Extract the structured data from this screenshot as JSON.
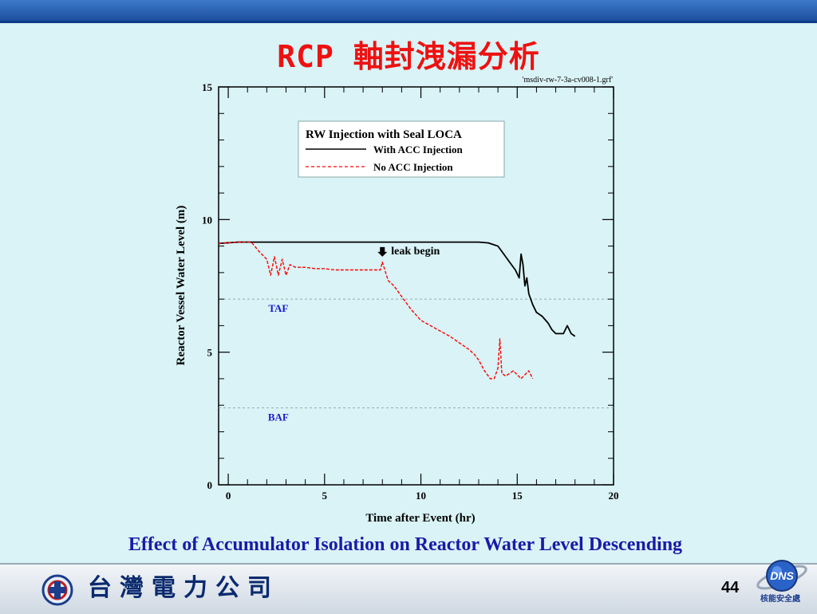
{
  "slide": {
    "title": "RCP 軸封洩漏分析",
    "caption": "Effect of Accumulator Isolation on Reactor Water Level Descending",
    "company_name": "台灣電力公司",
    "page_number": "44",
    "dns_logo_text": "DNS",
    "dns_motto": "核能安全處"
  },
  "colors": {
    "background": "#d9f3f6",
    "title": "#ee1111",
    "caption": "#1a1aa6",
    "series_with_acc": "#000000",
    "series_no_acc": "#ff0000",
    "reference_label": "#1a1acc"
  },
  "chart_data": {
    "type": "line",
    "file_label": "'msdiv-rw-7-3a-cv008-1.grf'",
    "xlabel": "Time after Event (hr)",
    "ylabel": "Reactor Vessel Water Level (m)",
    "xlim": [
      -0.5,
      20
    ],
    "ylim": [
      0,
      15
    ],
    "xticks": [
      0,
      5,
      10,
      15,
      20
    ],
    "yticks": [
      0,
      5,
      10,
      15
    ],
    "grid": false,
    "legend": {
      "title": "RW Injection with Seal LOCA",
      "placement": "top-center",
      "entries": [
        "With ACC Injection",
        "No ACC Injection"
      ]
    },
    "reference_lines": [
      {
        "label": "TAF",
        "y": 7.0
      },
      {
        "label": "BAF",
        "y": 2.9
      }
    ],
    "annotation": {
      "text": "leak begin",
      "x": 8.0,
      "y": 8.6
    },
    "series": [
      {
        "name": "With ACC Injection",
        "style": "solid",
        "color": "#000000",
        "x": [
          -0.5,
          0.5,
          1.2,
          2.0,
          5.0,
          8.0,
          10.0,
          12.0,
          13.0,
          13.5,
          14.0,
          14.3,
          14.6,
          14.9,
          15.1,
          15.2,
          15.3,
          15.4,
          15.5,
          15.6,
          15.8,
          16.0,
          16.3,
          16.6,
          16.8,
          17.0,
          17.2,
          17.4,
          17.6,
          17.8,
          18.0
        ],
        "y": [
          9.1,
          9.15,
          9.15,
          9.15,
          9.15,
          9.15,
          9.15,
          9.15,
          9.15,
          9.12,
          9.0,
          8.7,
          8.4,
          8.1,
          7.8,
          8.7,
          8.3,
          7.5,
          7.8,
          7.2,
          6.8,
          6.5,
          6.35,
          6.1,
          5.85,
          5.7,
          5.7,
          5.7,
          6.0,
          5.7,
          5.6
        ]
      },
      {
        "name": "No ACC Injection",
        "style": "dashed",
        "color": "#ff0000",
        "x": [
          -0.5,
          0.5,
          1.2,
          1.6,
          2.0,
          2.2,
          2.4,
          2.6,
          2.8,
          3.0,
          3.2,
          3.5,
          4.0,
          4.5,
          5.0,
          5.5,
          6.0,
          7.0,
          7.9,
          8.0,
          8.3,
          8.6,
          9.0,
          9.5,
          10.0,
          10.5,
          11.0,
          11.5,
          12.0,
          12.5,
          12.8,
          13.0,
          13.3,
          13.6,
          13.8,
          14.0,
          14.1,
          14.2,
          14.4,
          14.8,
          15.2,
          15.6,
          15.8
        ],
        "y": [
          9.1,
          9.15,
          9.15,
          8.8,
          8.5,
          7.9,
          8.6,
          7.9,
          8.5,
          7.9,
          8.3,
          8.2,
          8.2,
          8.15,
          8.15,
          8.1,
          8.1,
          8.1,
          8.1,
          8.4,
          7.7,
          7.5,
          7.1,
          6.6,
          6.2,
          6.0,
          5.8,
          5.6,
          5.35,
          5.1,
          4.9,
          4.7,
          4.3,
          4.0,
          4.0,
          4.4,
          5.5,
          4.2,
          4.1,
          4.3,
          4.0,
          4.3,
          4.0
        ]
      }
    ]
  }
}
